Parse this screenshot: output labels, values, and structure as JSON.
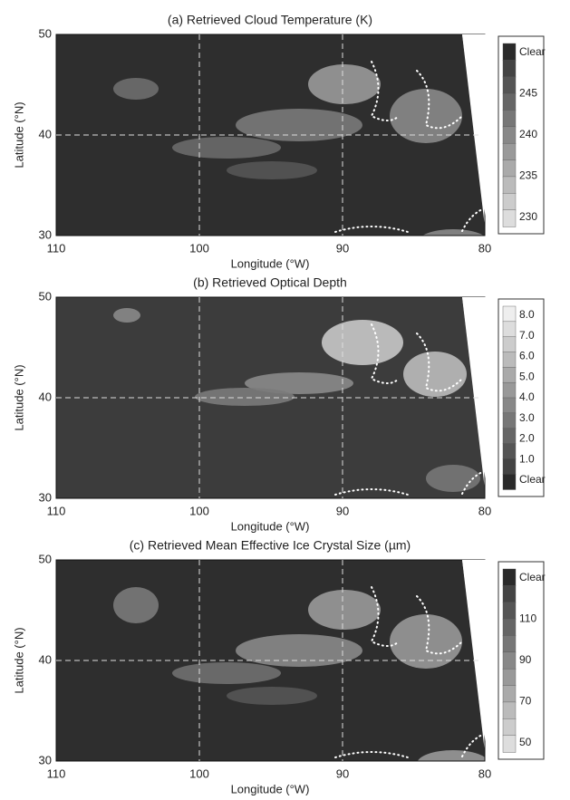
{
  "panels": [
    {
      "title": "(a) Retrieved Cloud Temperature (K)",
      "x_label": "Longitude (°W)",
      "y_label": "Latitude (°N)",
      "x_ticks": [
        "110",
        "100",
        "90",
        "80"
      ],
      "y_ticks": [
        "50",
        "40",
        "30"
      ],
      "colorbar": [
        "Clear",
        "245",
        "240",
        "235",
        "230"
      ]
    },
    {
      "title": "(b) Retrieved Optical Depth",
      "x_label": "Longitude (°W)",
      "y_label": "Latitude (°N)",
      "x_ticks": [
        "110",
        "100",
        "90",
        "80"
      ],
      "y_ticks": [
        "50",
        "40",
        "30"
      ],
      "colorbar": [
        "8.0",
        "7.0",
        "6.0",
        "5.0",
        "4.0",
        "3.0",
        "2.0",
        "1.0",
        "Clear"
      ]
    },
    {
      "title": "(c) Retrieved Mean Effective Ice Crystal Size (µm)",
      "x_label": "Longitude (°W)",
      "y_label": "Latitude (°N)",
      "x_ticks": [
        "110",
        "100",
        "90",
        "80"
      ],
      "y_ticks": [
        "50",
        "40",
        "30"
      ],
      "colorbar": [
        "Clear",
        "110",
        "90",
        "70",
        "50"
      ]
    }
  ]
}
